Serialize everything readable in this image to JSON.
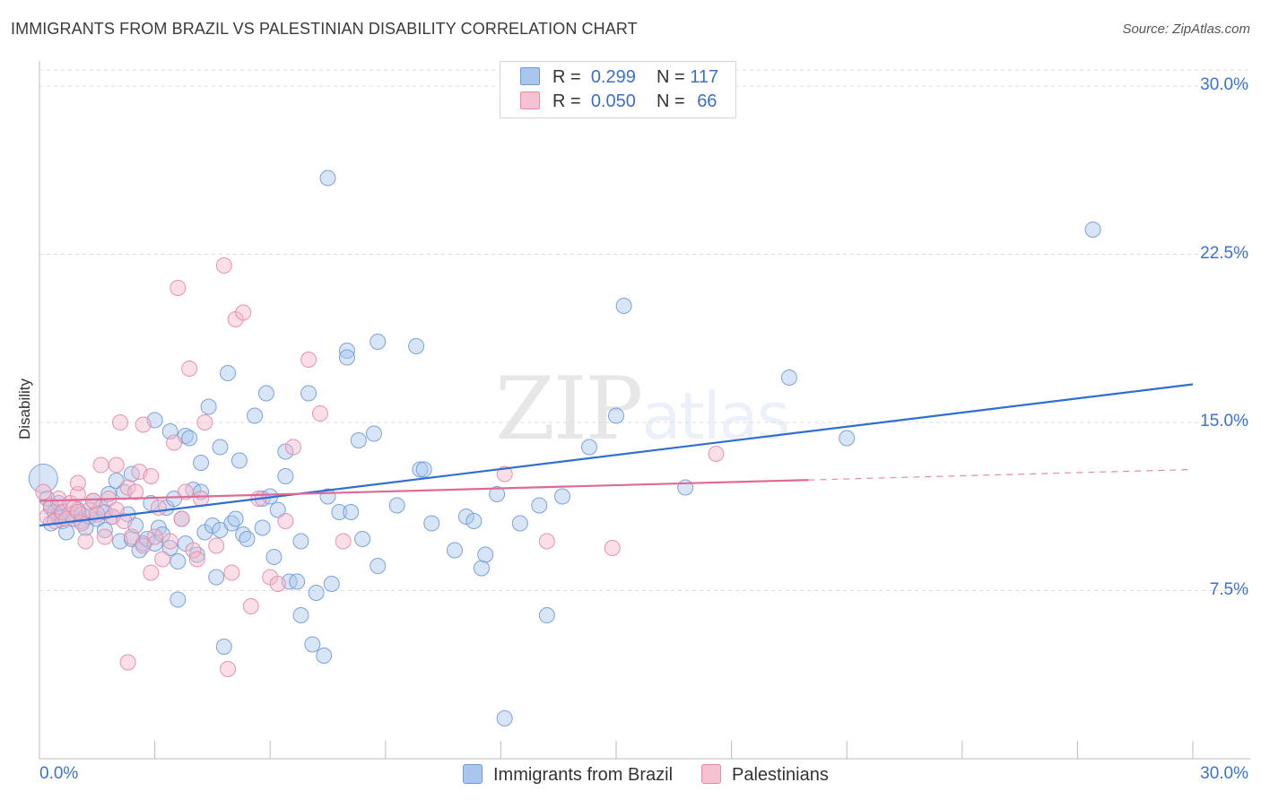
{
  "title": "IMMIGRANTS FROM BRAZIL VS PALESTINIAN DISABILITY CORRELATION CHART",
  "source": "Source: ZipAtlas.com",
  "watermark": {
    "zip": "ZIP",
    "atlas": "atlas"
  },
  "legend_top": [
    {
      "r_label": "R =",
      "r_value": "0.299",
      "n_label": "N =",
      "n_value": "117"
    },
    {
      "r_label": "R =",
      "r_value": "0.050",
      "n_label": "N =",
      "n_value": "66"
    }
  ],
  "colors": {
    "blue_fill": "#a9c6ee",
    "blue_stroke": "#6f9ad8",
    "blue_line": "#2f6fd1",
    "pink_fill": "#f5b8cb",
    "pink_stroke": "#e68aa6",
    "pink_line": "#e06a93",
    "tick_text": "#3d72c9",
    "grid": "#dddddd"
  },
  "chart_data": {
    "type": "scatter",
    "title": "IMMIGRANTS FROM BRAZIL VS PALESTINIAN DISABILITY CORRELATION CHART",
    "xlabel": "",
    "ylabel": "Disability",
    "xlim": [
      0,
      30
    ],
    "ylim": [
      0,
      31
    ],
    "x_tick_labels": [
      "0.0%",
      "30.0%"
    ],
    "y_ticks": [
      7.5,
      15.0,
      22.5,
      30.0
    ],
    "y_tick_labels": [
      "7.5%",
      "15.0%",
      "22.5%",
      "30.0%"
    ],
    "grid": "horizontal dashed",
    "legend_placement": "top-center and bottom",
    "series": [
      {
        "name": "Immigrants from Brazil",
        "color": "blue",
        "R": 0.299,
        "N": 117,
        "trend": {
          "x": [
            0,
            30
          ],
          "y": [
            10.4,
            16.7
          ],
          "dashed_from": null
        },
        "points": [
          [
            0.1,
            12.5
          ],
          [
            0.2,
            11.6
          ],
          [
            0.3,
            11.2
          ],
          [
            0.3,
            10.5
          ],
          [
            0.4,
            11.0
          ],
          [
            0.5,
            10.8
          ],
          [
            0.5,
            11.4
          ],
          [
            0.6,
            10.6
          ],
          [
            0.7,
            10.1
          ],
          [
            0.8,
            10.9
          ],
          [
            0.9,
            10.7
          ],
          [
            1.0,
            11.1
          ],
          [
            1.1,
            10.6
          ],
          [
            1.1,
            10.9
          ],
          [
            1.2,
            10.3
          ],
          [
            1.3,
            10.8
          ],
          [
            1.4,
            11.5
          ],
          [
            1.5,
            10.7
          ],
          [
            1.6,
            11.2
          ],
          [
            1.7,
            11.0
          ],
          [
            1.7,
            10.2
          ],
          [
            1.8,
            11.8
          ],
          [
            1.9,
            10.8
          ],
          [
            2.0,
            12.4
          ],
          [
            2.1,
            9.7
          ],
          [
            2.2,
            11.9
          ],
          [
            2.3,
            10.9
          ],
          [
            2.4,
            9.8
          ],
          [
            2.4,
            12.7
          ],
          [
            2.5,
            10.4
          ],
          [
            2.6,
            9.3
          ],
          [
            2.7,
            9.6
          ],
          [
            2.8,
            9.8
          ],
          [
            2.9,
            11.4
          ],
          [
            3.0,
            9.6
          ],
          [
            3.0,
            15.1
          ],
          [
            3.1,
            10.3
          ],
          [
            3.2,
            10.0
          ],
          [
            3.3,
            11.2
          ],
          [
            3.4,
            9.4
          ],
          [
            3.4,
            14.6
          ],
          [
            3.5,
            11.6
          ],
          [
            3.6,
            8.8
          ],
          [
            3.6,
            7.1
          ],
          [
            3.7,
            10.7
          ],
          [
            3.8,
            9.6
          ],
          [
            3.8,
            14.4
          ],
          [
            3.9,
            14.3
          ],
          [
            4.0,
            12.0
          ],
          [
            4.2,
            11.9
          ],
          [
            4.1,
            9.1
          ],
          [
            4.2,
            13.2
          ],
          [
            4.3,
            10.1
          ],
          [
            4.4,
            15.7
          ],
          [
            4.5,
            10.4
          ],
          [
            4.6,
            8.1
          ],
          [
            4.7,
            10.2
          ],
          [
            4.7,
            13.9
          ],
          [
            4.8,
            5.0
          ],
          [
            4.9,
            17.2
          ],
          [
            5.0,
            10.5
          ],
          [
            5.1,
            10.7
          ],
          [
            5.2,
            13.3
          ],
          [
            5.3,
            10.0
          ],
          [
            5.4,
            9.8
          ],
          [
            5.6,
            15.3
          ],
          [
            5.8,
            11.6
          ],
          [
            5.8,
            10.3
          ],
          [
            5.9,
            16.3
          ],
          [
            6.0,
            11.7
          ],
          [
            6.1,
            9.0
          ],
          [
            6.2,
            11.1
          ],
          [
            6.4,
            12.6
          ],
          [
            6.4,
            13.7
          ],
          [
            6.5,
            7.9
          ],
          [
            6.7,
            7.9
          ],
          [
            6.8,
            6.4
          ],
          [
            6.8,
            9.7
          ],
          [
            7.0,
            16.3
          ],
          [
            7.1,
            5.1
          ],
          [
            7.2,
            7.4
          ],
          [
            7.4,
            4.6
          ],
          [
            7.5,
            11.7
          ],
          [
            7.6,
            7.8
          ],
          [
            7.5,
            25.9
          ],
          [
            7.8,
            11.0
          ],
          [
            8.0,
            18.2
          ],
          [
            8.0,
            17.9
          ],
          [
            8.1,
            11.0
          ],
          [
            8.3,
            14.2
          ],
          [
            8.4,
            9.8
          ],
          [
            8.7,
            14.5
          ],
          [
            8.8,
            8.6
          ],
          [
            8.8,
            18.6
          ],
          [
            9.3,
            11.3
          ],
          [
            9.8,
            18.4
          ],
          [
            9.9,
            12.9
          ],
          [
            10.0,
            12.9
          ],
          [
            10.2,
            10.5
          ],
          [
            10.8,
            9.3
          ],
          [
            11.1,
            10.8
          ],
          [
            11.5,
            8.5
          ],
          [
            11.6,
            9.1
          ],
          [
            11.9,
            11.8
          ],
          [
            12.1,
            1.8
          ],
          [
            12.5,
            10.5
          ],
          [
            13.0,
            11.3
          ],
          [
            13.2,
            6.4
          ],
          [
            13.6,
            11.7
          ],
          [
            14.3,
            13.9
          ],
          [
            15.0,
            15.3
          ],
          [
            15.2,
            20.2
          ],
          [
            16.8,
            12.1
          ],
          [
            19.5,
            17.0
          ],
          [
            21.0,
            14.3
          ],
          [
            27.4,
            23.6
          ],
          [
            11.3,
            10.6
          ]
        ]
      },
      {
        "name": "Palestinians",
        "color": "pink",
        "R": 0.05,
        "N": 66,
        "trend": {
          "x": [
            0,
            30
          ],
          "y": [
            11.5,
            12.9
          ],
          "dashed_from": 20.0
        },
        "points": [
          [
            0.1,
            11.9
          ],
          [
            0.2,
            10.8
          ],
          [
            0.3,
            11.3
          ],
          [
            0.4,
            10.6
          ],
          [
            0.5,
            11.6
          ],
          [
            0.6,
            11.0
          ],
          [
            0.7,
            10.7
          ],
          [
            0.8,
            11.4
          ],
          [
            0.9,
            11.2
          ],
          [
            1.0,
            11.8
          ],
          [
            1.0,
            12.3
          ],
          [
            1.1,
            10.5
          ],
          [
            1.2,
            9.7
          ],
          [
            1.3,
            11.1
          ],
          [
            1.4,
            11.5
          ],
          [
            1.5,
            10.9
          ],
          [
            1.6,
            13.1
          ],
          [
            1.7,
            9.9
          ],
          [
            1.8,
            11.6
          ],
          [
            1.9,
            10.8
          ],
          [
            2.0,
            13.1
          ],
          [
            2.0,
            11.1
          ],
          [
            2.1,
            15.0
          ],
          [
            2.2,
            10.6
          ],
          [
            2.3,
            12.1
          ],
          [
            2.4,
            9.9
          ],
          [
            2.5,
            11.9
          ],
          [
            2.6,
            12.8
          ],
          [
            2.7,
            9.5
          ],
          [
            2.7,
            14.9
          ],
          [
            2.9,
            8.3
          ],
          [
            2.9,
            12.6
          ],
          [
            3.0,
            9.9
          ],
          [
            3.1,
            11.2
          ],
          [
            3.2,
            8.9
          ],
          [
            3.4,
            9.7
          ],
          [
            3.5,
            14.1
          ],
          [
            3.6,
            21.0
          ],
          [
            3.7,
            10.7
          ],
          [
            3.8,
            11.9
          ],
          [
            3.9,
            17.4
          ],
          [
            4.0,
            9.3
          ],
          [
            4.1,
            8.9
          ],
          [
            4.2,
            11.6
          ],
          [
            4.3,
            15.0
          ],
          [
            4.6,
            9.5
          ],
          [
            4.8,
            22.0
          ],
          [
            4.9,
            4.0
          ],
          [
            5.0,
            8.3
          ],
          [
            5.1,
            19.6
          ],
          [
            5.3,
            19.9
          ],
          [
            5.5,
            6.8
          ],
          [
            5.7,
            11.6
          ],
          [
            6.0,
            8.1
          ],
          [
            6.2,
            7.8
          ],
          [
            6.4,
            10.6
          ],
          [
            6.6,
            13.9
          ],
          [
            7.0,
            17.8
          ],
          [
            7.3,
            15.4
          ],
          [
            7.9,
            9.7
          ],
          [
            12.1,
            12.7
          ],
          [
            13.2,
            9.7
          ],
          [
            14.9,
            9.4
          ],
          [
            17.6,
            13.6
          ],
          [
            2.3,
            4.3
          ],
          [
            1.0,
            11.0
          ]
        ]
      }
    ]
  },
  "bottom_legend": [
    "Immigrants from Brazil",
    "Palestinians"
  ]
}
